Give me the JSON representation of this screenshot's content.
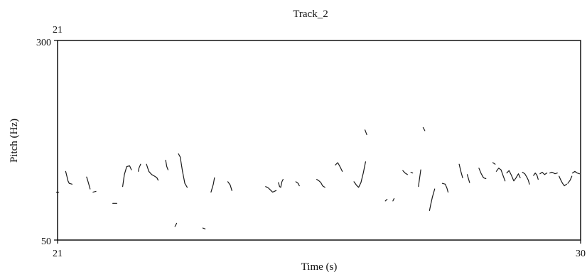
{
  "chart_data": {
    "type": "line",
    "title": "Track_2",
    "xlabel": "Time (s)",
    "ylabel": "Pitch (Hz)",
    "xlim": [
      21,
      30
    ],
    "ylim": [
      50,
      300
    ],
    "x_tick_labels": [
      "21",
      "30"
    ],
    "y_tick_labels": [
      "300",
      "50"
    ],
    "top_left_label": "21",
    "grid": false,
    "series": [
      {
        "segments": [
          [
            [
              20.98,
              110
            ],
            [
              21.02,
              110
            ]
          ],
          [
            [
              21.14,
              136
            ],
            [
              21.16,
              130
            ],
            [
              21.18,
              124
            ],
            [
              21.2,
              121
            ],
            [
              21.25,
              120
            ]
          ],
          [
            [
              21.5,
              129
            ],
            [
              21.53,
              122
            ],
            [
              21.56,
              114
            ]
          ],
          [
            [
              21.61,
              110
            ],
            [
              21.66,
              111
            ]
          ],
          [
            [
              21.95,
              96
            ],
            [
              22.02,
              96
            ]
          ],
          [
            [
              22.12,
              117
            ],
            [
              22.15,
              132
            ],
            [
              22.19,
              142
            ],
            [
              22.24,
              143
            ],
            [
              22.27,
              138
            ]
          ],
          [
            [
              22.39,
              136
            ],
            [
              22.4,
              140
            ],
            [
              22.43,
              145
            ]
          ],
          [
            [
              22.53,
              145
            ],
            [
              22.57,
              136
            ],
            [
              22.62,
              132
            ],
            [
              22.67,
              130
            ],
            [
              22.71,
              128
            ],
            [
              22.73,
              125
            ]
          ],
          [
            [
              22.86,
              150
            ],
            [
              22.88,
              142
            ],
            [
              22.9,
              138
            ]
          ],
          [
            [
              23.08,
              158
            ],
            [
              23.11,
              154
            ],
            [
              23.15,
              136
            ],
            [
              23.19,
              121
            ],
            [
              23.23,
              116
            ]
          ],
          [
            [
              23.02,
              67
            ],
            [
              23.05,
              71
            ]
          ],
          [
            [
              23.5,
              65
            ],
            [
              23.54,
              64
            ]
          ],
          [
            [
              23.64,
              110
            ],
            [
              23.68,
              120
            ],
            [
              23.7,
              128
            ]
          ],
          [
            [
              23.93,
              123
            ],
            [
              23.97,
              119
            ],
            [
              24.0,
              112
            ]
          ],
          [
            [
              24.58,
              117
            ],
            [
              24.63,
              115
            ],
            [
              24.7,
              110
            ],
            [
              24.76,
              112
            ]
          ],
          [
            [
              24.8,
              122
            ],
            [
              24.82,
              117
            ],
            [
              24.84,
              116
            ],
            [
              24.86,
              123
            ],
            [
              24.88,
              126
            ]
          ],
          [
            [
              25.1,
              123
            ],
            [
              25.14,
              121
            ],
            [
              25.16,
              118
            ]
          ],
          [
            [
              25.46,
              126
            ],
            [
              25.5,
              124
            ],
            [
              25.53,
              122
            ],
            [
              25.56,
              118
            ],
            [
              25.6,
              116
            ]
          ],
          [
            [
              25.78,
              144
            ],
            [
              25.82,
              147
            ],
            [
              25.86,
              142
            ],
            [
              25.9,
              136
            ]
          ],
          [
            [
              26.1,
              123
            ],
            [
              26.14,
              119
            ],
            [
              26.18,
              116
            ],
            [
              26.22,
              122
            ],
            [
              26.26,
              134
            ],
            [
              26.3,
              148
            ]
          ],
          [
            [
              26.29,
              188
            ],
            [
              26.32,
              182
            ]
          ],
          [
            [
              26.64,
              99
            ],
            [
              26.67,
              101
            ]
          ],
          [
            [
              26.77,
              99
            ],
            [
              26.79,
              102
            ]
          ],
          [
            [
              26.94,
              137
            ],
            [
              26.98,
              134
            ],
            [
              27.02,
              132
            ]
          ],
          [
            [
              27.08,
              135
            ],
            [
              27.11,
              134
            ]
          ],
          [
            [
              27.25,
              138
            ],
            [
              27.23,
              128
            ],
            [
              27.21,
              117
            ]
          ],
          [
            [
              27.29,
              191
            ],
            [
              27.32,
              187
            ]
          ],
          [
            [
              27.4,
              87
            ],
            [
              27.42,
              94
            ],
            [
              27.45,
              104
            ],
            [
              27.49,
              114
            ]
          ],
          [
            [
              27.62,
              121
            ],
            [
              27.67,
              120
            ],
            [
              27.7,
              115
            ],
            [
              27.72,
              110
            ]
          ],
          [
            [
              27.91,
              145
            ],
            [
              27.94,
              136
            ],
            [
              27.97,
              128
            ]
          ],
          [
            [
              28.05,
              132
            ],
            [
              28.09,
              122
            ]
          ],
          [
            [
              28.25,
              140
            ],
            [
              28.29,
              133
            ],
            [
              28.33,
              128
            ],
            [
              28.37,
              127
            ]
          ],
          [
            [
              28.49,
              147
            ],
            [
              28.53,
              145
            ]
          ],
          [
            [
              28.55,
              136
            ],
            [
              28.59,
              140
            ],
            [
              28.63,
              138
            ],
            [
              28.67,
              130
            ],
            [
              28.7,
              124
            ]
          ],
          [
            [
              28.73,
              134
            ],
            [
              28.77,
              137
            ],
            [
              28.81,
              131
            ],
            [
              28.85,
              124
            ],
            [
              28.89,
              128
            ],
            [
              28.93,
              133
            ],
            [
              28.96,
              128
            ]
          ],
          [
            [
              29.0,
              135
            ],
            [
              29.04,
              133
            ],
            [
              29.08,
              128
            ],
            [
              29.1,
              125
            ],
            [
              29.12,
              120
            ]
          ],
          [
            [
              29.19,
              131
            ],
            [
              29.22,
              134
            ],
            [
              29.25,
              131
            ],
            [
              29.27,
              126
            ]
          ],
          [
            [
              29.3,
              133
            ],
            [
              29.34,
              135
            ],
            [
              29.38,
              132
            ],
            [
              29.42,
              134
            ]
          ],
          [
            [
              29.47,
              134
            ],
            [
              29.51,
              135
            ],
            [
              29.56,
              133
            ],
            [
              29.6,
              134
            ]
          ],
          [
            [
              29.63,
              130
            ],
            [
              29.66,
              125
            ],
            [
              29.69,
              121
            ],
            [
              29.72,
              118
            ],
            [
              29.76,
              120
            ]
          ],
          [
            [
              29.78,
              121
            ],
            [
              29.82,
              125
            ],
            [
              29.85,
              130
            ]
          ],
          [
            [
              29.86,
              134
            ],
            [
              29.9,
              136
            ],
            [
              29.94,
              134
            ],
            [
              29.98,
              133
            ]
          ]
        ]
      }
    ]
  },
  "colors": {
    "background": "#ffffff",
    "axis": "#000000",
    "trace": "#1a1a1a",
    "text": "#111111"
  }
}
